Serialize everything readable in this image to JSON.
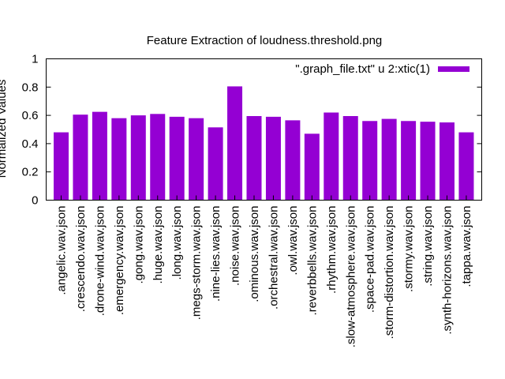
{
  "chart_data": {
    "type": "bar",
    "title": "Feature Extraction of loudness.threshold.png",
    "xlabel": "",
    "ylabel": "Normalized Values",
    "ylim": [
      0,
      1
    ],
    "yticks": [
      "0",
      "0.2",
      "0.4",
      "0.6",
      "0.8",
      "1"
    ],
    "grid": false,
    "legend_position": "top-right",
    "bar_color": "#9400d3",
    "series": [
      {
        "name": "\".graph_file.txt\" u 2:xtic(1)",
        "values": [
          0.48,
          0.605,
          0.625,
          0.58,
          0.6,
          0.61,
          0.59,
          0.58,
          0.515,
          0.805,
          0.595,
          0.59,
          0.565,
          0.47,
          0.62,
          0.595,
          0.56,
          0.575,
          0.56,
          0.555,
          0.55,
          0.48
        ]
      }
    ],
    "categories": [
      ".angelic.wav.json",
      ".crescendo.wav.json",
      ".drone-wind.wav.json",
      ".emergency.wav.json",
      ".gong.wav.json",
      ".huge.wav.json",
      ".long.wav.json",
      ".megs-storm.wav.json",
      ".nine-lies.wav.json",
      ".noise.wav.json",
      ".ominous.wav.json",
      ".orchestral.wav.json",
      ".owl.wav.json",
      ".reverbbells.wav.json",
      ".rhythm.wav.json",
      ".slow-atmosphere.wav.json",
      ".space-pad.wav.json",
      ".storm-distortion.wav.json",
      ".stormy.wav.json",
      ".string.wav.json",
      ".synth-horizons.wav.json",
      ".tappa.wav.json"
    ]
  }
}
